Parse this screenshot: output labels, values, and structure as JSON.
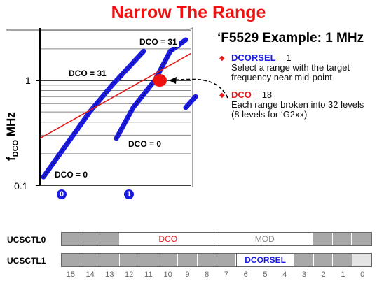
{
  "title": "Narrow The Range",
  "chart_data": {
    "type": "line",
    "ylabel": "fDCO MHz",
    "y_tick_labels": [
      "1",
      "0.1"
    ],
    "y_scale": "log",
    "x_range_labels": [
      "0",
      "1"
    ],
    "annotations": [
      "DCO = 31",
      "DCO = 31",
      "DCO = 0",
      "DCO = 0"
    ],
    "series": [
      {
        "values": [
          0.12,
          0.25,
          0.5,
          0.9,
          1.9
        ]
      },
      {
        "values": [
          0.28,
          0.55,
          1.0,
          1.9,
          3.8
        ]
      },
      {
        "values": [
          0.55,
          0.7
        ]
      }
    ],
    "target_line": [
      0.28,
      1.8
    ],
    "selected_point": 1.0
  },
  "example": {
    "title": "‘F5529 Example: 1 MHz",
    "bullet1_kw": "DCORSEL",
    "bullet1_eq": " = 1",
    "bullet1_text": "Select a range with the target frequency near mid-point",
    "bullet2_kw": "DCO",
    "bullet2_eq": " = 18",
    "bullet2_text": "Each range broken into 32 levels (8 levels for ‘G2xx)"
  },
  "registers": {
    "ctl0_label": "UCSCTL0",
    "ctl0_dco": "DCO",
    "ctl0_mod": "MOD",
    "ctl1_label": "UCSCTL1",
    "ctl1_dcorsel": "DCORSEL",
    "bits": [
      "15",
      "14",
      "13",
      "12",
      "11",
      "10",
      "9",
      "8",
      "7",
      "6",
      "5",
      "4",
      "3",
      "2",
      "1",
      "0"
    ]
  }
}
